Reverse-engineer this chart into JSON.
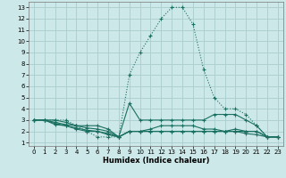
{
  "xlabel": "Humidex (Indice chaleur)",
  "bg_color": "#cce8e8",
  "grid_color": "#aacccc",
  "line_color": "#1a7060",
  "xlim_min": -0.5,
  "xlim_max": 23.5,
  "ylim_min": 0.7,
  "ylim_max": 13.5,
  "xticks": [
    0,
    1,
    2,
    3,
    4,
    5,
    6,
    7,
    8,
    9,
    10,
    11,
    12,
    13,
    14,
    15,
    16,
    17,
    18,
    19,
    20,
    21,
    22,
    23
  ],
  "yticks": [
    1,
    2,
    3,
    4,
    5,
    6,
    7,
    8,
    9,
    10,
    11,
    12,
    13
  ],
  "lines": [
    {
      "x": [
        0,
        1,
        2,
        3,
        4,
        5,
        6,
        7,
        8,
        9,
        10,
        11,
        12,
        13,
        14,
        15,
        16,
        17,
        18,
        19,
        20,
        21,
        22,
        23
      ],
      "y": [
        3,
        3,
        3,
        3,
        2.5,
        2,
        1.5,
        1.5,
        1.5,
        7,
        9,
        10.5,
        12,
        13,
        13,
        11.5,
        7.5,
        5,
        4,
        4,
        3.5,
        2.5,
        1.5,
        1.5
      ],
      "style": ":"
    },
    {
      "x": [
        0,
        1,
        2,
        3,
        4,
        5,
        6,
        7,
        8,
        9,
        10,
        11,
        12,
        13,
        14,
        15,
        16,
        17,
        18,
        19,
        20,
        21,
        22,
        23
      ],
      "y": [
        3,
        3,
        3,
        2.8,
        2.5,
        2.5,
        2.5,
        2.2,
        1.5,
        4.5,
        3,
        3,
        3,
        3,
        3,
        3,
        3,
        3.5,
        3.5,
        3.5,
        3,
        2.5,
        1.5,
        1.5
      ],
      "style": "-"
    },
    {
      "x": [
        0,
        1,
        2,
        3,
        4,
        5,
        6,
        7,
        8,
        9,
        10,
        11,
        12,
        13,
        14,
        15,
        16,
        17,
        18,
        19,
        20,
        21,
        22,
        23
      ],
      "y": [
        3,
        3,
        2.8,
        2.6,
        2.5,
        2.3,
        2.2,
        2,
        1.5,
        2,
        2,
        2.2,
        2.5,
        2.5,
        2.5,
        2.5,
        2.2,
        2.2,
        2,
        2.2,
        2,
        2,
        1.5,
        1.5
      ],
      "style": "-"
    },
    {
      "x": [
        0,
        1,
        2,
        3,
        4,
        5,
        6,
        7,
        8,
        9,
        10,
        11,
        12,
        13,
        14,
        15,
        16,
        17,
        18,
        19,
        20,
        21,
        22,
        23
      ],
      "y": [
        3,
        3,
        2.7,
        2.5,
        2.3,
        2.1,
        2,
        1.8,
        1.5,
        2,
        2,
        2,
        2,
        2,
        2,
        2,
        2,
        2,
        2,
        2,
        2,
        2,
        1.5,
        1.5
      ],
      "style": "-"
    },
    {
      "x": [
        0,
        1,
        2,
        3,
        4,
        5,
        6,
        7,
        8,
        9,
        10,
        11,
        12,
        13,
        14,
        15,
        16,
        17,
        18,
        19,
        20,
        21,
        22,
        23
      ],
      "y": [
        3,
        3,
        2.6,
        2.5,
        2.2,
        2,
        2,
        1.7,
        1.5,
        2,
        2,
        2,
        2,
        2,
        2,
        2,
        2,
        2,
        2,
        2,
        1.8,
        1.7,
        1.5,
        1.5
      ],
      "style": "-"
    }
  ]
}
